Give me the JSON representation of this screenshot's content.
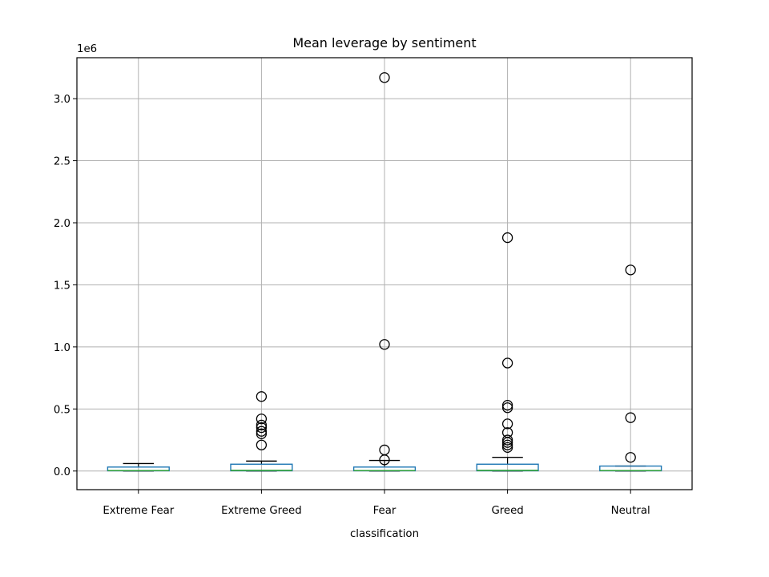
{
  "chart_data": {
    "type": "box",
    "title": "Mean leverage by sentiment",
    "xlabel": "classification",
    "ylabel": "",
    "y_offset_label": "1e6",
    "ylim": [
      -150000,
      3330000
    ],
    "yticks": [
      0.0,
      0.5,
      1.0,
      1.5,
      2.0,
      2.5,
      3.0
    ],
    "ytick_labels": [
      "0.0",
      "0.5",
      "1.0",
      "1.5",
      "2.0",
      "2.5",
      "3.0"
    ],
    "ytick_scale": 1000000,
    "grid": true,
    "categories": [
      "Extreme Fear",
      "Extreme Greed",
      "Fear",
      "Greed",
      "Neutral"
    ],
    "boxes": [
      {
        "category": "Extreme Fear",
        "whislo": 1,
        "q1": 2000,
        "median": 4000,
        "q3": 32000,
        "whishi": 60000,
        "fliers": []
      },
      {
        "category": "Extreme Greed",
        "whislo": 1,
        "q1": 2000,
        "median": 5000,
        "q3": 55000,
        "whishi": 80000,
        "fliers": [
          210000,
          300000,
          320000,
          350000,
          370000,
          420000,
          600000
        ]
      },
      {
        "category": "Fear",
        "whislo": 1,
        "q1": 2000,
        "median": 4000,
        "q3": 32000,
        "whishi": 85000,
        "fliers": [
          90000,
          170000,
          1020000,
          3170000
        ]
      },
      {
        "category": "Greed",
        "whislo": 1,
        "q1": 2000,
        "median": 5000,
        "q3": 55000,
        "whishi": 110000,
        "fliers": [
          190000,
          210000,
          230000,
          250000,
          310000,
          380000,
          510000,
          530000,
          870000,
          1880000
        ]
      },
      {
        "category": "Neutral",
        "whislo": 1,
        "q1": 2000,
        "median": 4000,
        "q3": 40000,
        "whishi": 40000,
        "fliers": [
          110000,
          430000,
          1620000
        ]
      }
    ],
    "colors": {
      "box": "#1f77b4",
      "median": "#2ca02c",
      "whisker": "#000000",
      "flier": "#000000",
      "grid": "#b0b0b0"
    }
  }
}
